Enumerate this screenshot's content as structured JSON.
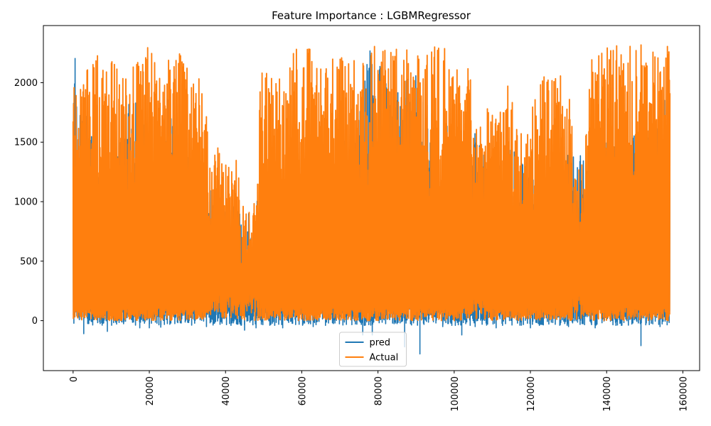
{
  "chart_data": {
    "type": "line",
    "title": "Feature Importance : LGBMRegressor",
    "xlabel": "",
    "ylabel": "",
    "xlim": [
      -7800,
      164400
    ],
    "ylim": [
      -420,
      2480
    ],
    "xticks": [
      0,
      20000,
      40000,
      60000,
      80000,
      100000,
      120000,
      140000,
      160000
    ],
    "xtick_labels": [
      "0",
      "20000",
      "40000",
      "60000",
      "80000",
      "100000",
      "120000",
      "140000",
      "160000"
    ],
    "xtick_rotation": 90,
    "yticks": [
      0,
      500,
      1000,
      1500,
      2000
    ],
    "ytick_labels": [
      "0",
      "500",
      "1000",
      "1500",
      "2000"
    ],
    "grid": false,
    "legend_position": "lower-center",
    "x_max": 156600,
    "series": [
      {
        "name": "pred",
        "color": "#1f77b4",
        "min": -280,
        "max": 2350,
        "envelope": [
          [
            0,
            2300
          ],
          [
            3000,
            1990
          ],
          [
            5000,
            1600
          ],
          [
            10000,
            1300
          ],
          [
            15000,
            2000
          ],
          [
            20000,
            1500
          ],
          [
            25000,
            1900
          ],
          [
            30000,
            1450
          ],
          [
            35000,
            1300
          ],
          [
            38000,
            1000
          ],
          [
            42000,
            1000
          ],
          [
            45000,
            850
          ],
          [
            48000,
            1000
          ],
          [
            50000,
            1200
          ],
          [
            55000,
            1000
          ],
          [
            60000,
            1100
          ],
          [
            65000,
            1200
          ],
          [
            70000,
            1500
          ],
          [
            75000,
            1800
          ],
          [
            78000,
            2350
          ],
          [
            80000,
            2200
          ],
          [
            85000,
            1950
          ],
          [
            90000,
            2100
          ],
          [
            95000,
            1700
          ],
          [
            100000,
            1650
          ],
          [
            105000,
            1600
          ],
          [
            110000,
            1300
          ],
          [
            115000,
            1500
          ],
          [
            120000,
            1300
          ],
          [
            125000,
            1150
          ],
          [
            130000,
            1450
          ],
          [
            133000,
            1450
          ],
          [
            135000,
            1300
          ],
          [
            140000,
            1650
          ],
          [
            145000,
            1500
          ],
          [
            150000,
            1700
          ],
          [
            156600,
            2220
          ]
        ],
        "dips": [
          [
            2800,
            -110
          ],
          [
            9000,
            -90
          ],
          [
            17500,
            -60
          ],
          [
            20000,
            -60
          ],
          [
            23000,
            -55
          ],
          [
            35000,
            -50
          ],
          [
            45000,
            -80
          ],
          [
            48000,
            -60
          ],
          [
            55000,
            -60
          ],
          [
            63000,
            -50
          ],
          [
            76000,
            -120
          ],
          [
            78500,
            -120
          ],
          [
            87000,
            -220
          ],
          [
            91000,
            -280
          ],
          [
            97000,
            -50
          ],
          [
            102000,
            -120
          ],
          [
            105500,
            -50
          ],
          [
            111000,
            -60
          ],
          [
            120000,
            -60
          ],
          [
            130000,
            -50
          ],
          [
            137000,
            -60
          ],
          [
            149000,
            -210
          ],
          [
            154000,
            -50
          ]
        ]
      },
      {
        "name": "Actual",
        "color": "#ff7f0e",
        "min": 0,
        "max": 2330,
        "envelope": [
          [
            0,
            2230
          ],
          [
            5000,
            2240
          ],
          [
            10000,
            2240
          ],
          [
            15000,
            2250
          ],
          [
            20000,
            2300
          ],
          [
            25000,
            2310
          ],
          [
            28000,
            2250
          ],
          [
            30000,
            2240
          ],
          [
            33000,
            2100
          ],
          [
            36000,
            1800
          ],
          [
            40000,
            1630
          ],
          [
            42000,
            1790
          ],
          [
            45000,
            1060
          ],
          [
            47000,
            1090
          ],
          [
            49000,
            2150
          ],
          [
            52000,
            2090
          ],
          [
            55000,
            2050
          ],
          [
            58000,
            2300
          ],
          [
            62000,
            2320
          ],
          [
            65000,
            2120
          ],
          [
            70000,
            2300
          ],
          [
            75000,
            2310
          ],
          [
            80000,
            2320
          ],
          [
            85000,
            2320
          ],
          [
            90000,
            2320
          ],
          [
            95000,
            2300
          ],
          [
            98000,
            2320
          ],
          [
            102000,
            2280
          ],
          [
            104000,
            2230
          ],
          [
            107000,
            2170
          ],
          [
            110000,
            1770
          ],
          [
            114000,
            1980
          ],
          [
            118000,
            1650
          ],
          [
            121000,
            1850
          ],
          [
            124000,
            2100
          ],
          [
            127000,
            2120
          ],
          [
            130000,
            1950
          ],
          [
            133000,
            2000
          ],
          [
            136000,
            2220
          ],
          [
            140000,
            2330
          ],
          [
            143000,
            2320
          ],
          [
            146000,
            2330
          ],
          [
            150000,
            2330
          ],
          [
            154000,
            2330
          ],
          [
            156600,
            2300
          ]
        ],
        "gaps": [
          [
            35000,
            49000,
            0.55
          ],
          [
            104500,
            108500,
            0.45
          ],
          [
            131000,
            134500,
            0.35
          ]
        ]
      }
    ]
  }
}
